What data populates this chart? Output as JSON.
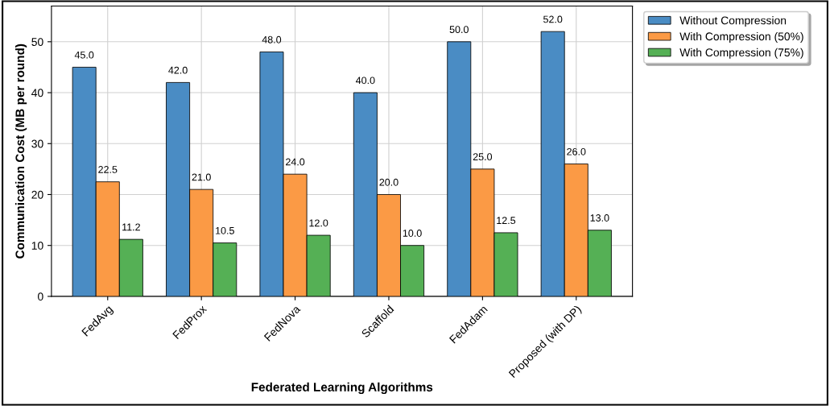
{
  "chart_data": {
    "type": "bar",
    "xlabel": "Federated Learning Algorithms",
    "ylabel": "Communication Cost (MB per round)",
    "categories": [
      "FedAvg",
      "FedProx",
      "FedNova",
      "Scaffold",
      "FedAdam",
      "Proposed (with DP)"
    ],
    "series": [
      {
        "name": "Without Compression",
        "color": "#4a8cc4",
        "values": [
          45,
          42,
          48,
          40,
          50,
          52
        ],
        "value_labels": [
          "45.0",
          "42.0",
          "48.0",
          "40.0",
          "50.0",
          "52.0"
        ]
      },
      {
        "name": "With Compression (50%)",
        "color": "#fb9a45",
        "values": [
          22.5,
          21,
          24,
          20,
          25,
          26
        ],
        "value_labels": [
          "22.5",
          "21.0",
          "24.0",
          "20.0",
          "25.0",
          "26.0"
        ]
      },
      {
        "name": "With Compression (75%)",
        "color": "#55b055",
        "values": [
          11.2,
          10.5,
          12,
          10,
          12.5,
          13
        ],
        "value_labels": [
          "11.2",
          "10.5",
          "12.0",
          "10.0",
          "12.5",
          "13.0"
        ]
      }
    ],
    "ylim": [
      0,
      57
    ],
    "yticks": [
      0,
      10,
      20,
      30,
      40,
      50
    ],
    "grid": true,
    "legend": "top right"
  }
}
